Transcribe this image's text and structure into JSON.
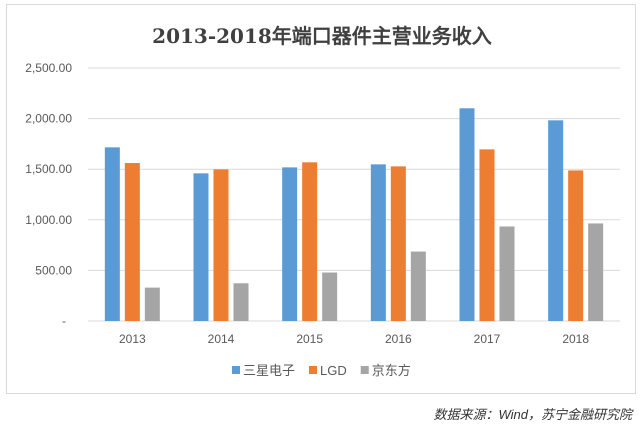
{
  "chart_data": {
    "type": "bar",
    "title": "2013-2018年端口器件主营业务收入",
    "categories": [
      "2013",
      "2014",
      "2015",
      "2016",
      "2017",
      "2018"
    ],
    "series": [
      {
        "name": "三星电子",
        "color": "#5b9bd5",
        "values": [
          1716,
          1459,
          1518,
          1548,
          2102,
          1983
        ]
      },
      {
        "name": "LGD",
        "color": "#ed7d31",
        "values": [
          1561,
          1498,
          1568,
          1528,
          1696,
          1488
        ]
      },
      {
        "name": "京东方",
        "color": "#a5a5a5",
        "values": [
          330,
          373,
          479,
          686,
          934,
          964
        ]
      }
    ],
    "ylim": [
      0,
      2500
    ],
    "yticks": [
      {
        "value": 0,
        "label": "-"
      },
      {
        "value": 500,
        "label": "500.00"
      },
      {
        "value": 1000,
        "label": "1,000.00"
      },
      {
        "value": 1500,
        "label": "1,500.00"
      },
      {
        "value": 2000,
        "label": "2,000.00"
      },
      {
        "value": 2500,
        "label": "2,500.00"
      }
    ],
    "grid": true,
    "legend_position": "bottom"
  },
  "source": "数据来源：Wind，苏宁金融研究院"
}
